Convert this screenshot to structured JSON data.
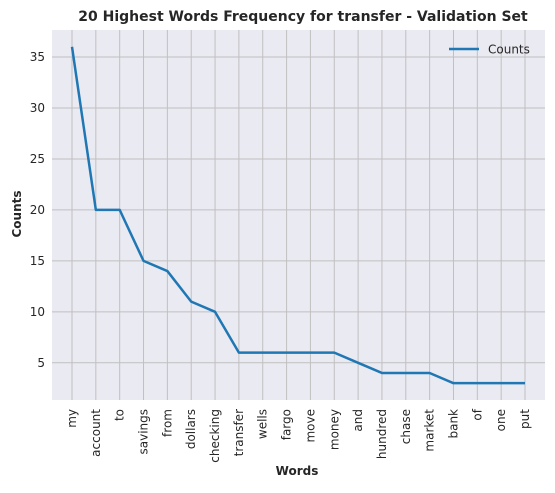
{
  "chart_data": {
    "type": "line",
    "title": "20 Highest Words Frequency for transfer - Validation Set",
    "xlabel": "Words",
    "ylabel": "Counts",
    "categories": [
      "my",
      "account",
      "to",
      "savings",
      "from",
      "dollars",
      "checking",
      "transfer",
      "wells",
      "fargo",
      "move",
      "money",
      "and",
      "hundred",
      "chase",
      "market",
      "bank",
      "of",
      "one",
      "put"
    ],
    "series": [
      {
        "name": "Counts",
        "color": "#1f77b4",
        "values": [
          36,
          20,
          20,
          15,
          14,
          11,
          10,
          6,
          6,
          6,
          6,
          6,
          5,
          4,
          4,
          4,
          3,
          3,
          3,
          3
        ]
      }
    ],
    "yticks": [
      5,
      10,
      15,
      20,
      25,
      30,
      35
    ],
    "ylim": [
      1.35,
      37.65
    ],
    "grid": true,
    "legend": "top-right",
    "colors": {
      "plot_background": "#eaeaf2",
      "grid": "#c0c0c0"
    }
  }
}
